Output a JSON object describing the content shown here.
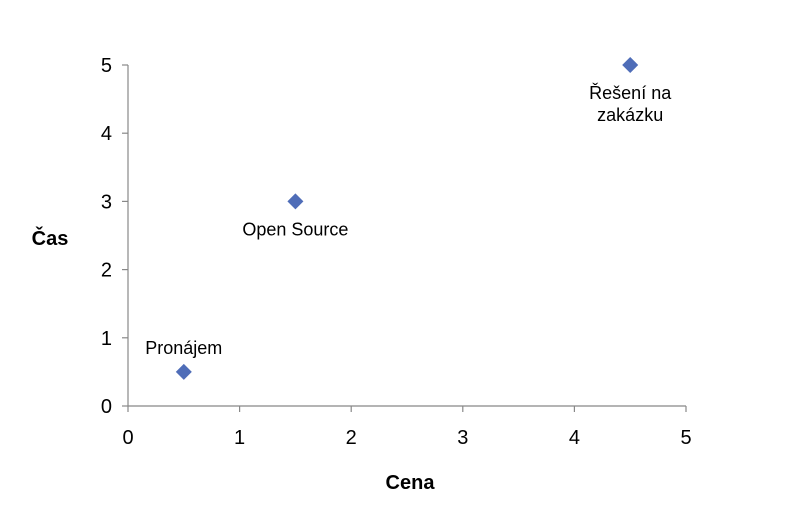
{
  "chart_data": {
    "type": "scatter",
    "title": "",
    "xlabel": "Cena",
    "ylabel": "Čas",
    "xlim": [
      0,
      5
    ],
    "ylim": [
      0,
      5
    ],
    "x_ticks": [
      "0",
      "1",
      "2",
      "3",
      "4",
      "5"
    ],
    "y_ticks": [
      "0",
      "1",
      "2",
      "3",
      "4",
      "5"
    ],
    "grid": false,
    "legend": "none",
    "marker": "diamond",
    "marker_color": "#4F6DB8",
    "points": [
      {
        "x": 0.5,
        "y": 0.5,
        "label": "Pronájem"
      },
      {
        "x": 1.5,
        "y": 3,
        "label": "Open Source"
      },
      {
        "x": 4.5,
        "y": 5,
        "label": "Řešení na zakázku"
      }
    ]
  }
}
